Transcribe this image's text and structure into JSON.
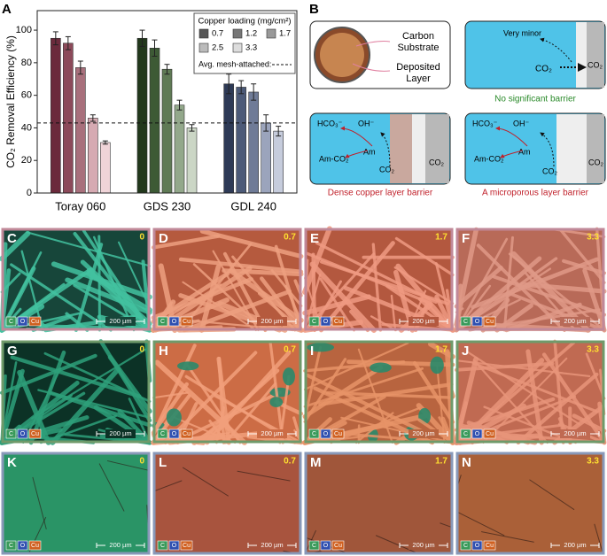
{
  "chart_data": {
    "type": "bar",
    "panel": "A",
    "ylabel": "CO₂ Removal Efficiency (%)",
    "categories": [
      "Toray 060",
      "GDS 230",
      "GDL 240"
    ],
    "ylim": [
      0,
      112
    ],
    "yticks": [
      0,
      20,
      40,
      60,
      80,
      100
    ],
    "grid": false,
    "legend_title": "Copper loading (mg/cm²)",
    "legend": "upper right",
    "series": [
      {
        "name": "0.7",
        "color": "#555555",
        "bar_colors": [
          "#6b2a3c",
          "#22381c",
          "#2e3a56"
        ],
        "values": [
          95,
          95,
          67
        ],
        "errors": [
          4,
          5,
          6
        ]
      },
      {
        "name": "1.2",
        "color": "#777777",
        "bar_colors": [
          "#8c4a5a",
          "#3d5a35",
          "#4c5a78"
        ],
        "values": [
          92,
          89,
          65
        ],
        "errors": [
          4,
          5,
          4
        ]
      },
      {
        "name": "1.7",
        "color": "#999999",
        "bar_colors": [
          "#a8707c",
          "#5f7a55",
          "#6f7b97"
        ],
        "values": [
          77,
          76,
          62
        ],
        "errors": [
          4,
          3,
          5
        ]
      },
      {
        "name": "2.5",
        "color": "#bbbbbb",
        "bar_colors": [
          "#d6aab2",
          "#93a88b",
          "#9ba4bc"
        ],
        "values": [
          46,
          54,
          43
        ],
        "errors": [
          2,
          3,
          5
        ]
      },
      {
        "name": "3.3",
        "color": "#dddddd",
        "bar_colors": [
          "#f0d4d8",
          "#cbd6c5",
          "#c6ccdc"
        ],
        "values": [
          31,
          40,
          38
        ],
        "errors": [
          1,
          2,
          3
        ]
      }
    ],
    "reference_line": {
      "value": 43,
      "label": "Avg. mesh-attached:"
    }
  },
  "diagram": {
    "panel": "B",
    "carbon_substrate": [
      "Carbon",
      "Substrate"
    ],
    "deposited_layer": [
      "Deposited",
      "Layer"
    ],
    "very_minor": "Very minor",
    "co2": "CO₂",
    "hco3": "HCO₃⁻",
    "oh": "OH⁻",
    "am": "Am",
    "am_co2": "Am-CO₂",
    "captions": [
      "No significant barrier",
      "Dense copper layer barrier",
      "A microporous layer barrier"
    ]
  },
  "micrographs": {
    "scale_bar": "200 µm",
    "channels": [
      "C",
      "O",
      "Cu"
    ],
    "rows": [
      [
        {
          "letter": "C",
          "loading": "0"
        },
        {
          "letter": "D",
          "loading": "0.7"
        },
        {
          "letter": "E",
          "loading": "1.7"
        },
        {
          "letter": "F",
          "loading": "3.3"
        }
      ],
      [
        {
          "letter": "G",
          "loading": "0"
        },
        {
          "letter": "H",
          "loading": "0.7"
        },
        {
          "letter": "I",
          "loading": "1.7"
        },
        {
          "letter": "J",
          "loading": "3.3"
        }
      ],
      [
        {
          "letter": "K",
          "loading": "0"
        },
        {
          "letter": "L",
          "loading": "0.7"
        },
        {
          "letter": "M",
          "loading": "1.7"
        },
        {
          "letter": "N",
          "loading": "3.3"
        }
      ]
    ]
  }
}
